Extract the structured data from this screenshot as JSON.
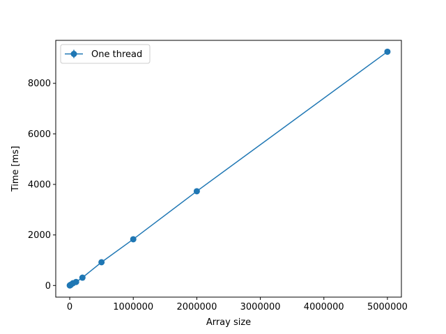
{
  "chart_data": {
    "type": "line",
    "title": "",
    "xlabel": "Array size",
    "ylabel": "Time [ms]",
    "xlim": [
      -220000,
      5220000
    ],
    "ylim": [
      -460,
      9700
    ],
    "xticks": [
      0,
      1000000,
      2000000,
      3000000,
      4000000,
      5000000
    ],
    "xtick_labels": [
      "0",
      "1000000",
      "2000000",
      "3000000",
      "4000000",
      "5000000"
    ],
    "yticks": [
      0,
      2000,
      4000,
      6000,
      8000
    ],
    "ytick_labels": [
      "0",
      "2000",
      "4000",
      "6000",
      "8000"
    ],
    "grid": false,
    "legend": {
      "position": "top-left",
      "entries": [
        "One thread"
      ]
    },
    "series": [
      {
        "name": "One thread",
        "color": "#1f77b4",
        "marker": "circle",
        "error_bars": true,
        "x": [
          1000,
          5000,
          10000,
          20000,
          50000,
          100000,
          200000,
          500000,
          1000000,
          2000000,
          5000000
        ],
        "y": [
          2,
          9,
          18,
          36,
          90,
          140,
          310,
          920,
          1830,
          3730,
          9250
        ]
      }
    ]
  }
}
